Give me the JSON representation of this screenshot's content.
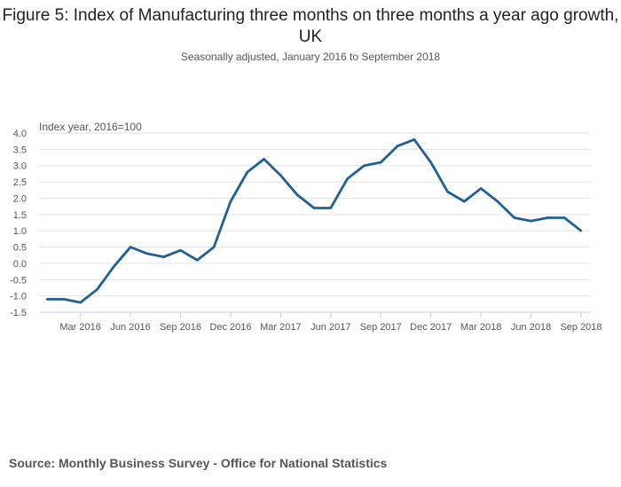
{
  "chart_data": {
    "type": "line",
    "title": "Figure 5: Index of Manufacturing three months on three months a year ago growth, UK",
    "subtitle": "Seasonally adjusted, January 2016 to September 2018",
    "ylabel": "Index year, 2016=100",
    "xlabel": "",
    "ylim": [
      -1.5,
      4.0
    ],
    "yticks": [
      "4.0",
      "3.5",
      "3.0",
      "2.5",
      "2.0",
      "1.5",
      "1.0",
      "0.5",
      "0.0",
      "-0.5",
      "-1.0",
      "-1.5"
    ],
    "xtick_labels": [
      {
        "index": 2,
        "label": "Mar 2016"
      },
      {
        "index": 5,
        "label": "Jun 2016"
      },
      {
        "index": 8,
        "label": "Sep 2016"
      },
      {
        "index": 11,
        "label": "Dec 2016"
      },
      {
        "index": 14,
        "label": "Mar 2017"
      },
      {
        "index": 17,
        "label": "Jun 2017"
      },
      {
        "index": 20,
        "label": "Sep 2017"
      },
      {
        "index": 23,
        "label": "Dec 2017"
      },
      {
        "index": 26,
        "label": "Mar 2018"
      },
      {
        "index": 29,
        "label": "Jun 2018"
      },
      {
        "index": 32,
        "label": "Sep 2018"
      }
    ],
    "grid": true,
    "series": [
      {
        "name": "Index of Manufacturing",
        "color": "#206095",
        "values": [
          -1.1,
          -1.1,
          -1.2,
          -0.8,
          -0.1,
          0.5,
          0.3,
          0.2,
          0.4,
          0.1,
          0.5,
          1.9,
          2.8,
          3.2,
          2.7,
          2.1,
          1.7,
          1.7,
          2.6,
          3.0,
          3.1,
          3.6,
          3.8,
          3.1,
          2.2,
          1.9,
          2.3,
          1.9,
          1.4,
          1.3,
          1.4,
          1.4,
          1.0
        ]
      }
    ]
  },
  "source": "Source: Monthly Business Survey - Office for National Statistics"
}
